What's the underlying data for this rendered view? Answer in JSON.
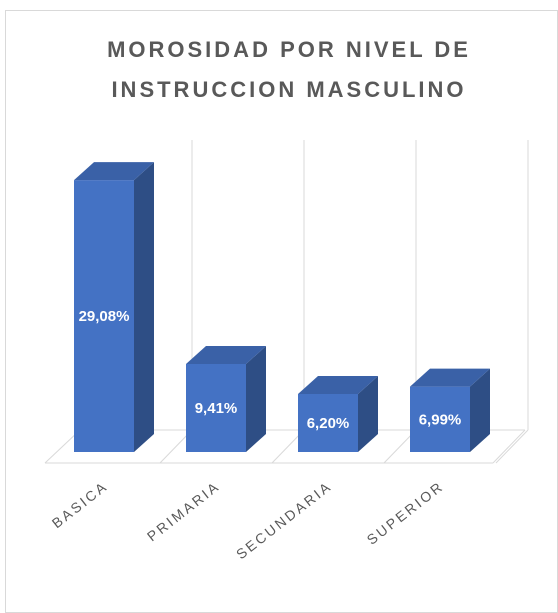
{
  "chart_data": {
    "type": "bar3d",
    "title": [
      "MOROSIDAD POR NIVEL DE",
      "INSTRUCCION MASCULINO"
    ],
    "categories": [
      "BASICA",
      "PRIMARIA",
      "SECUNDARIA",
      "SUPERIOR"
    ],
    "values": [
      29.08,
      9.41,
      6.2,
      6.99
    ],
    "value_labels": [
      "29,08%",
      "9,41%",
      "6,20%",
      "6,99%"
    ],
    "color": "#4472c4"
  }
}
